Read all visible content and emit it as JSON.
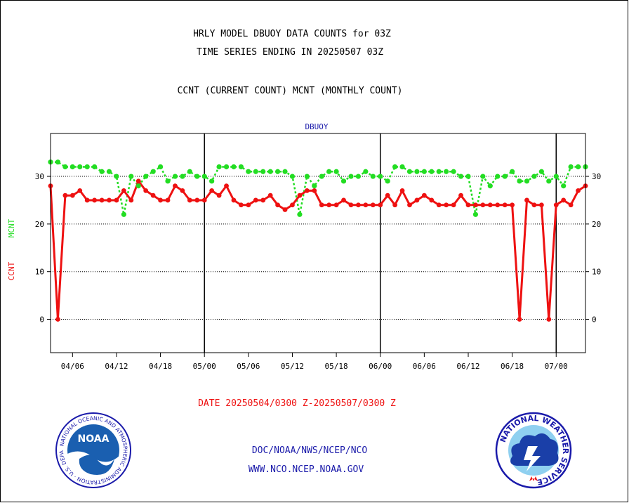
{
  "header": {
    "title_line1": "HRLY MODEL DBUOY DATA COUNTS for 03Z",
    "title_line2": "TIME SERIES ENDING IN 20250507 03Z",
    "subtitle": "CCNT (CURRENT COUNT) MCNT (MONTHLY COUNT)"
  },
  "colors": {
    "ccnt": "#ee1111",
    "mcnt": "#22dd22",
    "blue_text": "#1a1aaa",
    "axis": "#000000"
  },
  "chart_data": {
    "type": "line",
    "title": "DBUOY",
    "xlabel": "DATE 20250504/0300 Z-20250507/0300 Z",
    "ylabel_ccnt": "CCNT",
    "ylabel_mcnt": "MCNT",
    "ylim": [
      -7,
      39
    ],
    "yticks": [
      0,
      10,
      20,
      30
    ],
    "xlim": [
      0,
      73
    ],
    "x_ticks": [
      {
        "pos": 3,
        "label": "04/06"
      },
      {
        "pos": 9,
        "label": "04/12"
      },
      {
        "pos": 15,
        "label": "04/18"
      },
      {
        "pos": 21,
        "label": "05/00"
      },
      {
        "pos": 27,
        "label": "05/06"
      },
      {
        "pos": 33,
        "label": "05/12"
      },
      {
        "pos": 39,
        "label": "05/18"
      },
      {
        "pos": 45,
        "label": "06/00"
      },
      {
        "pos": 51,
        "label": "06/06"
      },
      {
        "pos": 57,
        "label": "06/12"
      },
      {
        "pos": 63,
        "label": "06/18"
      },
      {
        "pos": 69,
        "label": "07/00"
      }
    ],
    "day_boundaries": [
      21,
      45,
      69
    ],
    "grid": true,
    "series": [
      {
        "name": "CCNT",
        "color": "#ee1111",
        "style": "solid",
        "x": [
          0,
          1,
          2,
          3,
          4,
          5,
          6,
          7,
          8,
          9,
          10,
          11,
          12,
          13,
          14,
          15,
          16,
          17,
          18,
          19,
          20,
          21,
          22,
          23,
          24,
          25,
          26,
          27,
          28,
          29,
          30,
          31,
          32,
          33,
          34,
          35,
          36,
          37,
          38,
          39,
          40,
          41,
          42,
          43,
          44,
          45,
          46,
          47,
          48,
          49,
          50,
          51,
          52,
          53,
          54,
          55,
          56,
          57,
          58,
          59,
          60,
          61,
          62,
          63,
          64,
          65,
          66,
          67,
          68,
          69,
          70,
          71,
          72,
          73
        ],
        "values": [
          28,
          0,
          26,
          26,
          27,
          25,
          25,
          25,
          25,
          25,
          27,
          25,
          29,
          27,
          26,
          25,
          25,
          28,
          27,
          25,
          25,
          25,
          27,
          26,
          28,
          25,
          24,
          24,
          25,
          25,
          26,
          24,
          23,
          24,
          26,
          27,
          27,
          24,
          24,
          24,
          25,
          24,
          24,
          24,
          24,
          24,
          26,
          24,
          27,
          24,
          25,
          26,
          25,
          24,
          24,
          24,
          26,
          24,
          24,
          24,
          24,
          24,
          24,
          24,
          0,
          25,
          24,
          24,
          0,
          24,
          25,
          24,
          27,
          28
        ]
      },
      {
        "name": "MCNT",
        "color": "#22dd22",
        "style": "dotted",
        "x": [
          0,
          1,
          2,
          3,
          4,
          5,
          6,
          7,
          8,
          9,
          10,
          11,
          12,
          13,
          14,
          15,
          16,
          17,
          18,
          19,
          20,
          21,
          22,
          23,
          24,
          25,
          26,
          27,
          28,
          29,
          30,
          31,
          32,
          33,
          34,
          35,
          36,
          37,
          38,
          39,
          40,
          41,
          42,
          43,
          44,
          45,
          46,
          47,
          48,
          49,
          50,
          51,
          52,
          53,
          54,
          55,
          56,
          57,
          58,
          59,
          60,
          61,
          62,
          63,
          64,
          65,
          66,
          67,
          68,
          69,
          70,
          71,
          72,
          73
        ],
        "values": [
          33,
          33,
          32,
          32,
          32,
          32,
          32,
          31,
          31,
          30,
          22,
          30,
          28,
          30,
          31,
          32,
          29,
          30,
          30,
          31,
          30,
          30,
          29,
          32,
          32,
          32,
          32,
          31,
          31,
          31,
          31,
          31,
          31,
          30,
          22,
          30,
          28,
          30,
          31,
          31,
          29,
          30,
          30,
          31,
          30,
          30,
          29,
          32,
          32,
          31,
          31,
          31,
          31,
          31,
          31,
          31,
          30,
          30,
          22,
          30,
          28,
          30,
          30,
          31,
          29,
          29,
          30,
          31,
          29,
          30,
          28,
          32,
          32,
          32
        ]
      }
    ]
  },
  "footer": {
    "links_line1": "DOC/NOAA/NWS/NCEP/NCO",
    "links_line2": "WWW.NCO.NCEP.NOAA.GOV"
  },
  "logos": {
    "noaa_icon": "noaa-logo-icon",
    "noaa_text": "NOAA",
    "noaa_ring_text": "NATIONAL OCEANIC AND ATMOSPHERIC ADMINISTRATION · U.S. DEPARTMENT OF COMMERCE",
    "nws_icon": "nws-logo-icon",
    "nws_ring_text": "NATIONAL WEATHER SERVICE"
  }
}
